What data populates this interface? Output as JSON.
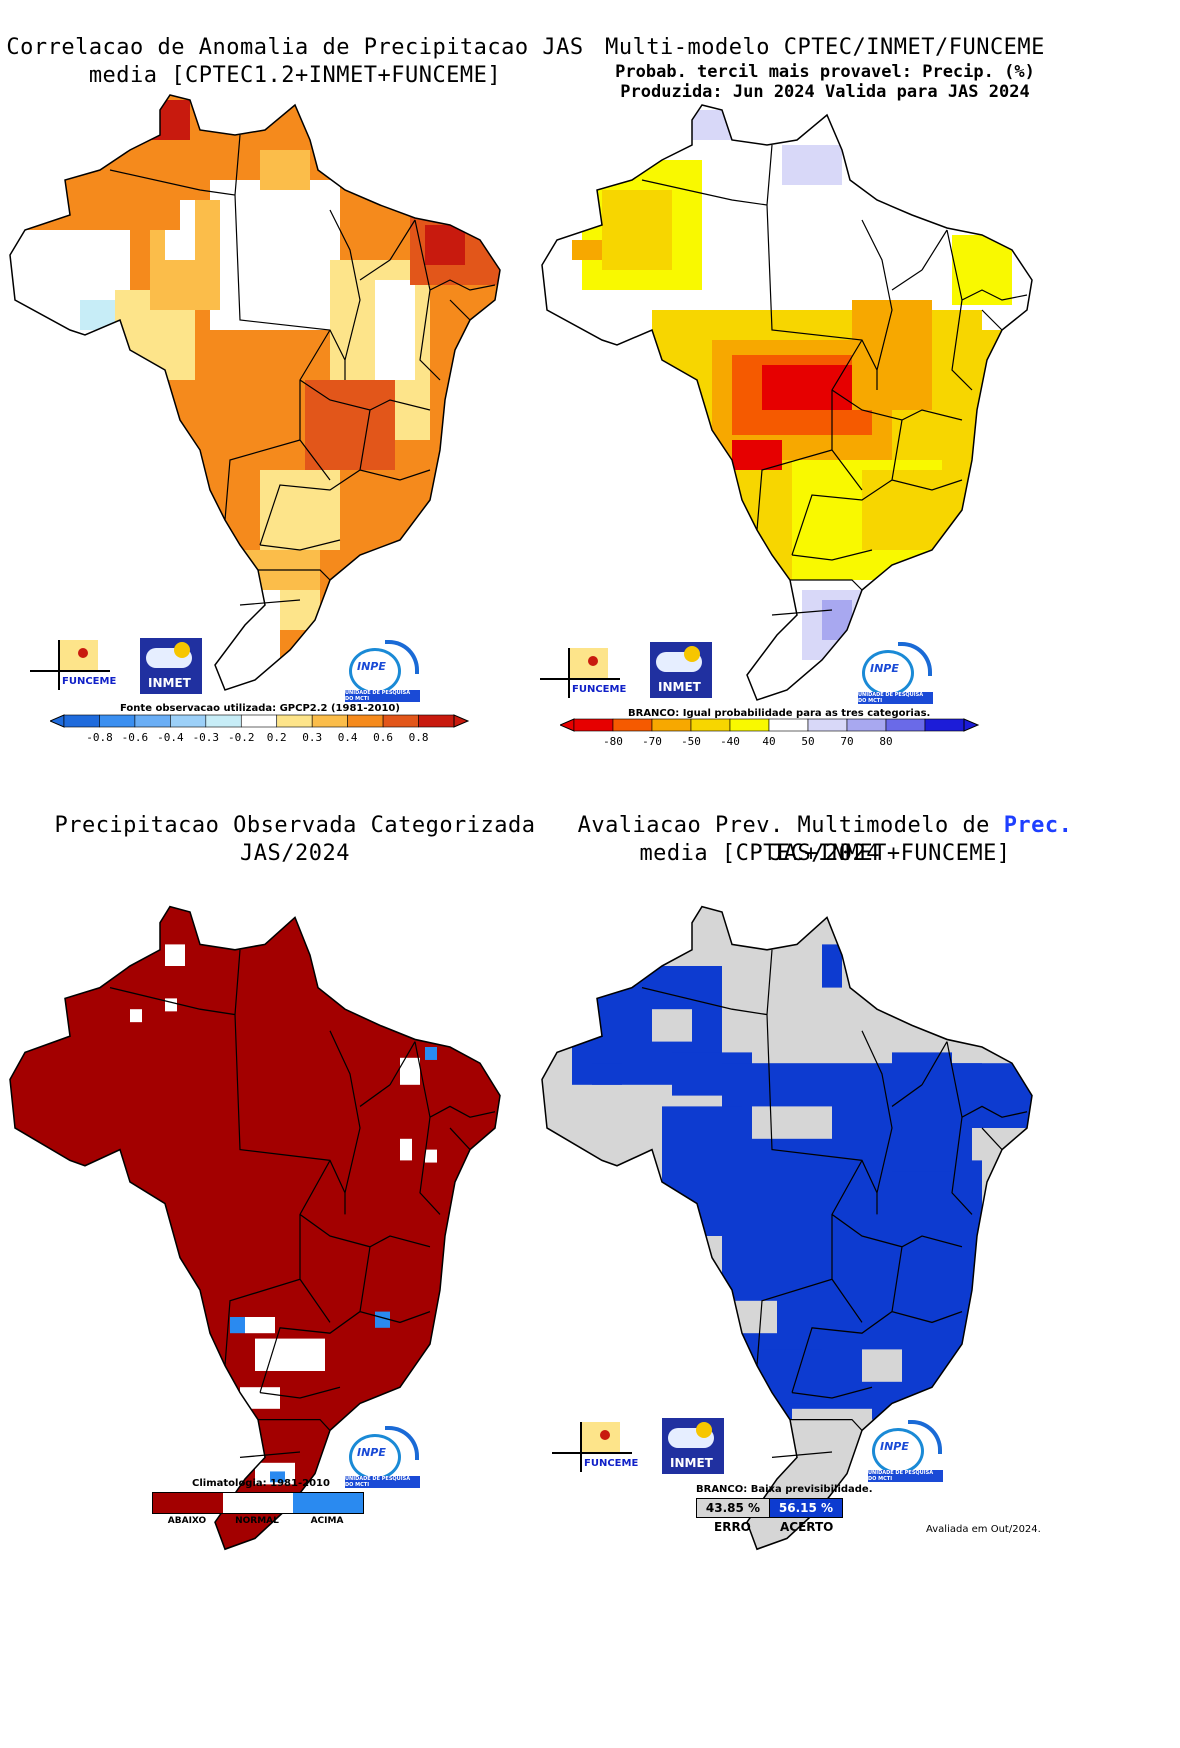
{
  "panel1": {
    "title_line1": "Correlacao de Anomalia de Precipitacao JAS",
    "title_line2": "media [CPTEC1.2+INMET+FUNCEME]",
    "source_note": "Fonte observacao utilizada: GPCP2.2 (1981-2010)",
    "colorbar": {
      "labels": [
        "-0.8",
        "-0.6",
        "-0.4",
        "-0.3",
        "-0.2",
        "0.2",
        "0.3",
        "0.4",
        "0.6",
        "0.8"
      ],
      "colors": [
        "#1f6bdc",
        "#3b8ff0",
        "#6aaef5",
        "#9cd0f8",
        "#c7edf7",
        "#ffffff",
        "#fde48a",
        "#fbbd4a",
        "#f58a1c",
        "#e2561a",
        "#c81a0e"
      ]
    }
  },
  "panel2": {
    "title_line1": "Multi-modelo CPTEC/INMET/FUNCEME",
    "title_line2": "Probab. tercil mais provavel: Precip. (%)",
    "title_line3": "Produzida: Jun 2024  Valida para JAS 2024",
    "branco_note": "BRANCO: Igual probabilidade para as tres categorias.",
    "colorbar": {
      "labels": [
        "-80",
        "-70",
        "-50",
        "-40",
        "40",
        "50",
        "70",
        "80"
      ],
      "colors": [
        "#e60000",
        "#f55a00",
        "#f7a800",
        "#f7d600",
        "#f9f900",
        "#ffffff",
        "#d8d8f8",
        "#a8a8f0",
        "#6a6ae8",
        "#1c1cd8"
      ]
    }
  },
  "panel3": {
    "title_line1": "Precipitacao Observada Categorizada",
    "title_line2": "JAS/2024",
    "climatology_note": "Climatologia: 1981-2010",
    "legend": {
      "labels": [
        "ABAIXO",
        "NORMAL",
        "ACIMA"
      ],
      "colors": [
        "#a30000",
        "#ffffff",
        "#2a8af0"
      ]
    }
  },
  "panel4": {
    "title_line1_a": "Avaliacao Prev. Multimodelo de ",
    "title_line1_b": "Prec.",
    "title_line1_c": " JAS/2024",
    "title_line2": "media [CPTEC+INMET+FUNCEME]",
    "branco_note": "BRANCO: Baixa previsibilidade.",
    "erro_value": "43.85 %",
    "acerto_value": "56.15 %",
    "erro_label": "ERRO",
    "acerto_label": "ACERTO",
    "colors": {
      "erro": "#d6d6d6",
      "acerto": "#0d3bd0"
    },
    "evaluated_note": "Avaliada em Out/2024."
  },
  "logos": {
    "funceme": "FUNCEME",
    "inmet": "INMET",
    "inpe": "INPE",
    "inpe_sub": "UNIDADE DE PESQUISA DO MCTI"
  }
}
